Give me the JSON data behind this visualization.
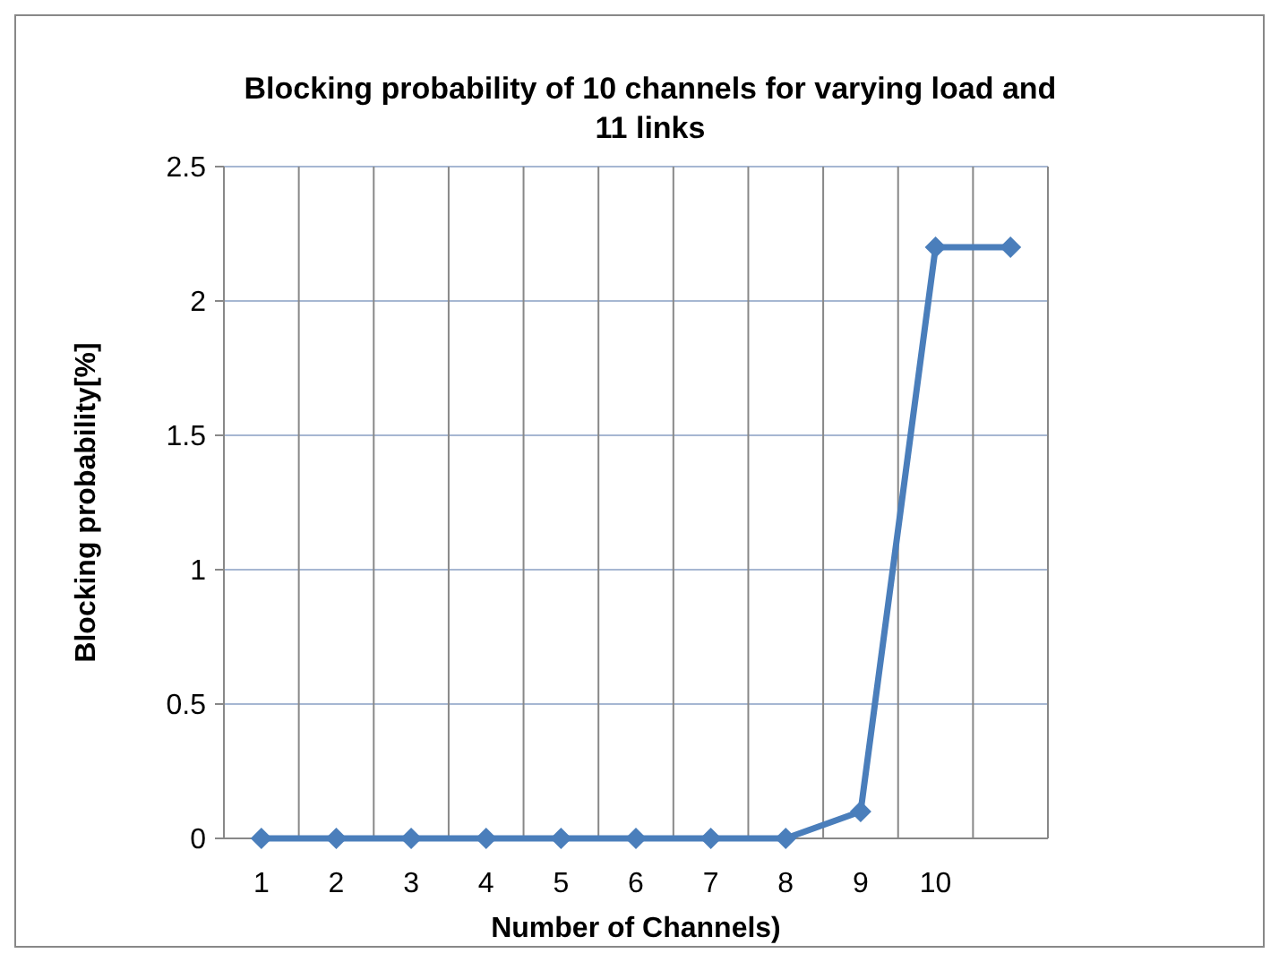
{
  "chart_data": {
    "type": "line",
    "title": "Blocking probability of 10 channels for varying load and 11 links",
    "xlabel": "Number of Channels)",
    "ylabel": "Blocking probability[%]",
    "categories": [
      "1",
      "2",
      "3",
      "4",
      "5",
      "6",
      "7",
      "8",
      "9",
      "10",
      null
    ],
    "series": [
      {
        "color": "#4a7ebb",
        "values": [
          0,
          0,
          0,
          0,
          0,
          0,
          0,
          0,
          0.1,
          2.2,
          2.2
        ]
      }
    ],
    "ylim": [
      0,
      2.5
    ],
    "yticks": [
      0,
      0.5,
      1,
      1.5,
      2,
      2.5
    ],
    "grid": true,
    "marker": "diamond",
    "line_style": "solid"
  }
}
